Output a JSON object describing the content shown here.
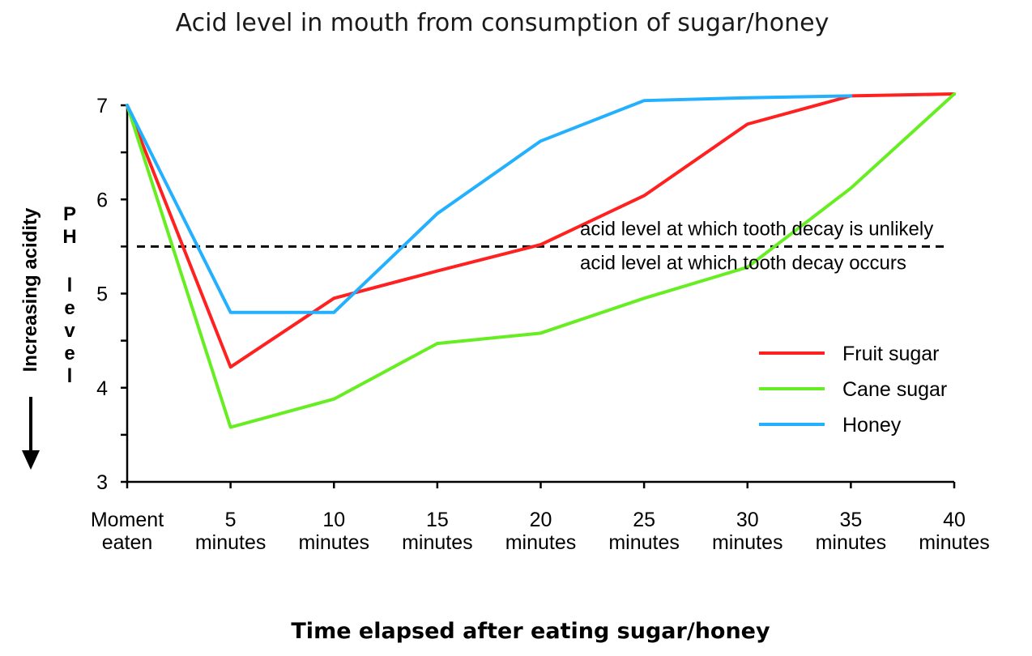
{
  "chart_data": {
    "type": "line",
    "title": "Acid level in mouth from consumption of sugar/honey",
    "xlabel": "Time elapsed after eating sugar/honey",
    "ylabel": "PH level",
    "ylabel_secondary": "Increasing acidity",
    "categories": [
      [
        "Moment",
        "eaten"
      ],
      [
        "5",
        "minutes"
      ],
      [
        "10",
        "minutes"
      ],
      [
        "15",
        "minutes"
      ],
      [
        "20",
        "minutes"
      ],
      [
        "25",
        "minutes"
      ],
      [
        "30",
        "minutes"
      ],
      [
        "35",
        "minutes"
      ],
      [
        "40",
        "minutes"
      ]
    ],
    "x": [
      0,
      5,
      10,
      15,
      20,
      25,
      30,
      35,
      40
    ],
    "ylim": [
      3,
      7
    ],
    "yticks": [
      3,
      4,
      5,
      6,
      7
    ],
    "series": [
      {
        "name": "Fruit sugar",
        "color": "#ff2020",
        "x": [
          0,
          5,
          10,
          15,
          20,
          25,
          30,
          35,
          40
        ],
        "values": [
          7.0,
          4.22,
          4.95,
          5.24,
          5.52,
          6.04,
          6.8,
          7.1,
          7.12
        ]
      },
      {
        "name": "Cane sugar",
        "color": "#66ee22",
        "x": [
          0,
          5,
          10,
          15,
          20,
          25,
          30,
          35,
          40
        ],
        "values": [
          7.0,
          3.58,
          3.88,
          4.47,
          4.58,
          4.95,
          5.28,
          6.12,
          7.12
        ]
      },
      {
        "name": "Honey",
        "color": "#22b0ff",
        "x": [
          0,
          5,
          10,
          15,
          20,
          25,
          30,
          35
        ],
        "values": [
          7.0,
          4.8,
          4.8,
          5.85,
          6.62,
          7.05,
          7.08,
          7.1
        ]
      }
    ],
    "threshold": {
      "value": 5.5,
      "style": "dashed",
      "label_above": "acid level at which tooth decay is unlikely",
      "label_below": "acid level at which tooth decay occurs"
    },
    "legend": {
      "placement": "right, below threshold line"
    },
    "grid": false
  }
}
